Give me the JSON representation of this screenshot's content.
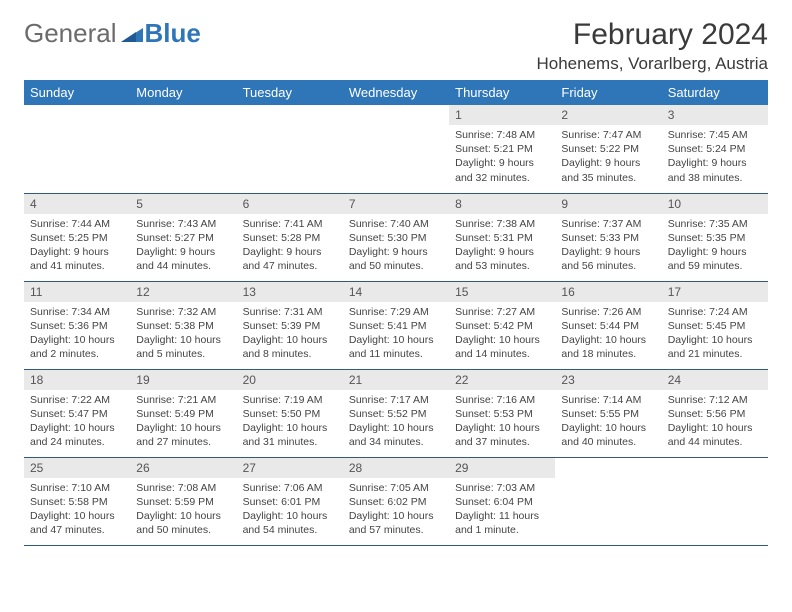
{
  "logo": {
    "part1": "General",
    "part2": "Blue"
  },
  "title": "February 2024",
  "location": "Hohenems, Vorarlberg, Austria",
  "colors": {
    "header_bg": "#2f76b8",
    "header_fg": "#ffffff",
    "daynum_bg": "#e9e9e9",
    "rule": "#2f5a88",
    "text": "#444444",
    "logo_gray": "#6b6b6b",
    "logo_blue": "#2f76b8"
  },
  "day_names": [
    "Sunday",
    "Monday",
    "Tuesday",
    "Wednesday",
    "Thursday",
    "Friday",
    "Saturday"
  ],
  "layout": {
    "columns": 7,
    "rows": 5,
    "first_weekday_index": 4,
    "days_in_month": 29
  },
  "days": {
    "1": {
      "sunrise": "7:48 AM",
      "sunset": "5:21 PM",
      "daylight": "9 hours and 32 minutes."
    },
    "2": {
      "sunrise": "7:47 AM",
      "sunset": "5:22 PM",
      "daylight": "9 hours and 35 minutes."
    },
    "3": {
      "sunrise": "7:45 AM",
      "sunset": "5:24 PM",
      "daylight": "9 hours and 38 minutes."
    },
    "4": {
      "sunrise": "7:44 AM",
      "sunset": "5:25 PM",
      "daylight": "9 hours and 41 minutes."
    },
    "5": {
      "sunrise": "7:43 AM",
      "sunset": "5:27 PM",
      "daylight": "9 hours and 44 minutes."
    },
    "6": {
      "sunrise": "7:41 AM",
      "sunset": "5:28 PM",
      "daylight": "9 hours and 47 minutes."
    },
    "7": {
      "sunrise": "7:40 AM",
      "sunset": "5:30 PM",
      "daylight": "9 hours and 50 minutes."
    },
    "8": {
      "sunrise": "7:38 AM",
      "sunset": "5:31 PM",
      "daylight": "9 hours and 53 minutes."
    },
    "9": {
      "sunrise": "7:37 AM",
      "sunset": "5:33 PM",
      "daylight": "9 hours and 56 minutes."
    },
    "10": {
      "sunrise": "7:35 AM",
      "sunset": "5:35 PM",
      "daylight": "9 hours and 59 minutes."
    },
    "11": {
      "sunrise": "7:34 AM",
      "sunset": "5:36 PM",
      "daylight": "10 hours and 2 minutes."
    },
    "12": {
      "sunrise": "7:32 AM",
      "sunset": "5:38 PM",
      "daylight": "10 hours and 5 minutes."
    },
    "13": {
      "sunrise": "7:31 AM",
      "sunset": "5:39 PM",
      "daylight": "10 hours and 8 minutes."
    },
    "14": {
      "sunrise": "7:29 AM",
      "sunset": "5:41 PM",
      "daylight": "10 hours and 11 minutes."
    },
    "15": {
      "sunrise": "7:27 AM",
      "sunset": "5:42 PM",
      "daylight": "10 hours and 14 minutes."
    },
    "16": {
      "sunrise": "7:26 AM",
      "sunset": "5:44 PM",
      "daylight": "10 hours and 18 minutes."
    },
    "17": {
      "sunrise": "7:24 AM",
      "sunset": "5:45 PM",
      "daylight": "10 hours and 21 minutes."
    },
    "18": {
      "sunrise": "7:22 AM",
      "sunset": "5:47 PM",
      "daylight": "10 hours and 24 minutes."
    },
    "19": {
      "sunrise": "7:21 AM",
      "sunset": "5:49 PM",
      "daylight": "10 hours and 27 minutes."
    },
    "20": {
      "sunrise": "7:19 AM",
      "sunset": "5:50 PM",
      "daylight": "10 hours and 31 minutes."
    },
    "21": {
      "sunrise": "7:17 AM",
      "sunset": "5:52 PM",
      "daylight": "10 hours and 34 minutes."
    },
    "22": {
      "sunrise": "7:16 AM",
      "sunset": "5:53 PM",
      "daylight": "10 hours and 37 minutes."
    },
    "23": {
      "sunrise": "7:14 AM",
      "sunset": "5:55 PM",
      "daylight": "10 hours and 40 minutes."
    },
    "24": {
      "sunrise": "7:12 AM",
      "sunset": "5:56 PM",
      "daylight": "10 hours and 44 minutes."
    },
    "25": {
      "sunrise": "7:10 AM",
      "sunset": "5:58 PM",
      "daylight": "10 hours and 47 minutes."
    },
    "26": {
      "sunrise": "7:08 AM",
      "sunset": "5:59 PM",
      "daylight": "10 hours and 50 minutes."
    },
    "27": {
      "sunrise": "7:06 AM",
      "sunset": "6:01 PM",
      "daylight": "10 hours and 54 minutes."
    },
    "28": {
      "sunrise": "7:05 AM",
      "sunset": "6:02 PM",
      "daylight": "10 hours and 57 minutes."
    },
    "29": {
      "sunrise": "7:03 AM",
      "sunset": "6:04 PM",
      "daylight": "11 hours and 1 minute."
    }
  },
  "labels": {
    "sunrise": "Sunrise:",
    "sunset": "Sunset:",
    "daylight": "Daylight:"
  }
}
